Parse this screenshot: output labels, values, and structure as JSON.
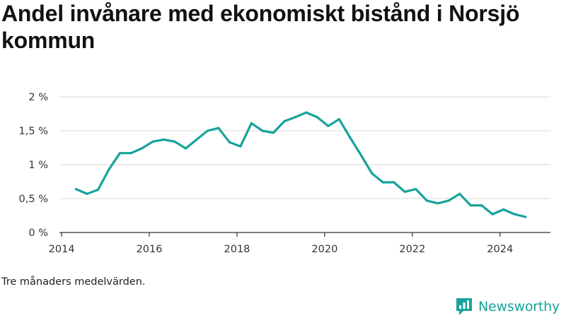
{
  "title": "Andel invånare med ekonomiskt bistånd i Norsjö kommun",
  "note": "Tre månaders medelvärden.",
  "brand": {
    "name": "Newsworthy",
    "icon": "newsworthy-logo-icon",
    "color": "#17a39b"
  },
  "colors": {
    "line": "#17a39b",
    "grid": "#d9d9d9",
    "axis": "#333333"
  },
  "chart_data": {
    "type": "line",
    "title": "Andel invånare med ekonomiskt bistånd i Norsjö kommun",
    "xlabel": "",
    "ylabel": "",
    "xlim": [
      2013.95,
      2025.15
    ],
    "ylim": [
      0,
      2
    ],
    "grid": true,
    "y_ticks": [
      {
        "value": 0,
        "label": "0 %"
      },
      {
        "value": 0.5,
        "label": "0,5 %"
      },
      {
        "value": 1,
        "label": "1 %"
      },
      {
        "value": 1.5,
        "label": "1,5 %"
      },
      {
        "value": 2,
        "label": "2 %"
      }
    ],
    "x_ticks": [
      {
        "value": 2014,
        "label": "2014"
      },
      {
        "value": 2016,
        "label": "2016"
      },
      {
        "value": 2018,
        "label": "2018"
      },
      {
        "value": 2020,
        "label": "2020"
      },
      {
        "value": 2022,
        "label": "2022"
      },
      {
        "value": 2024,
        "label": "2024"
      }
    ],
    "series": [
      {
        "x": [
          2014.33,
          2014.58,
          2014.83,
          2015.08,
          2015.33,
          2015.58,
          2015.83,
          2016.08,
          2016.33,
          2016.58,
          2016.83,
          2017.08,
          2017.33,
          2017.58,
          2017.83,
          2018.08,
          2018.33,
          2018.58,
          2018.83,
          2019.08,
          2019.33,
          2019.58,
          2019.83,
          2020.08,
          2020.33,
          2020.58,
          2020.83,
          2021.08,
          2021.33,
          2021.58,
          2021.83,
          2022.08,
          2022.33,
          2022.58,
          2022.83,
          2023.08,
          2023.33,
          2023.58,
          2023.83,
          2024.08,
          2024.33,
          2024.58
        ],
        "values": [
          0.64,
          0.57,
          0.63,
          0.93,
          1.17,
          1.17,
          1.24,
          1.34,
          1.37,
          1.34,
          1.24,
          1.37,
          1.5,
          1.54,
          1.33,
          1.27,
          1.61,
          1.5,
          1.47,
          1.64,
          1.7,
          1.77,
          1.7,
          1.57,
          1.67,
          1.4,
          1.14,
          0.87,
          0.74,
          0.74,
          0.6,
          0.64,
          0.47,
          0.43,
          0.47,
          0.57,
          0.4,
          0.4,
          0.27,
          0.34,
          0.27,
          0.23
        ]
      }
    ]
  }
}
